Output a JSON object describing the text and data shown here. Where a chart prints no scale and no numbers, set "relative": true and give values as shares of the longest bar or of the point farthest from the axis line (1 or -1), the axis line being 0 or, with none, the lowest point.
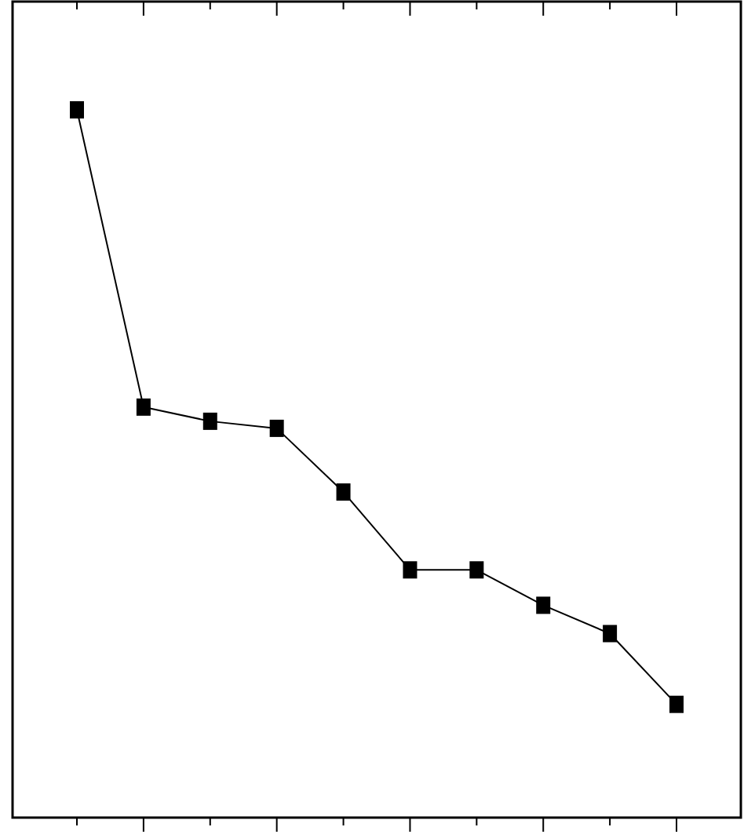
{
  "chart_data": {
    "type": "line",
    "relative": true,
    "categories": [
      null,
      null,
      null,
      null,
      null,
      null,
      null,
      null,
      null,
      null
    ],
    "series": [
      {
        "color": "#000000",
        "values": [
          1,
          0.58,
          0.56,
          0.55,
          0.46,
          0.35,
          0.35,
          0.3,
          0.26,
          0.16
        ]
      }
    ],
    "marker": "square",
    "line_style": "solid"
  }
}
